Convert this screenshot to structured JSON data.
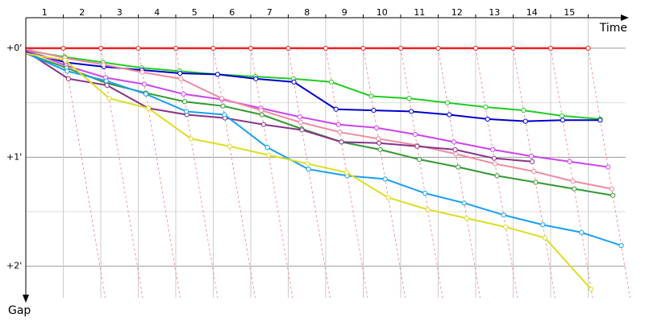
{
  "chart_data": {
    "type": "line",
    "x_label": "Time",
    "y_label": "Gap",
    "x": [
      0,
      1,
      2,
      3,
      4,
      5,
      6,
      7,
      8,
      9,
      10,
      11,
      12,
      13,
      14,
      15
    ],
    "xlim": [
      0,
      16
    ],
    "xticks": [
      1,
      2,
      3,
      4,
      5,
      6,
      7,
      8,
      9,
      10,
      11,
      12,
      13,
      14,
      15
    ],
    "ylim": [
      -0.28,
      2.29
    ],
    "yticks": [
      {
        "value": 0,
        "label": "+0'"
      },
      {
        "value": 1,
        "label": "+1'"
      },
      {
        "value": 2,
        "label": "+2'"
      }
    ],
    "minor_yticks": [
      0.5,
      1.5
    ],
    "grid": true,
    "series": [
      {
        "name": "Red",
        "color": "#ee2222",
        "values": [
          0,
          0,
          0,
          0,
          0,
          0,
          0,
          0,
          0,
          0,
          0,
          0,
          0,
          0,
          0,
          0
        ]
      },
      {
        "name": "Green",
        "color": "#22cc22",
        "values": [
          0.02,
          0.08,
          0.13,
          0.18,
          0.21,
          0.24,
          0.26,
          0.28,
          0.31,
          0.44,
          0.46,
          0.5,
          0.54,
          0.57,
          0.62,
          0.65
        ]
      },
      {
        "name": "Dark blue",
        "color": "#0000cc",
        "values": [
          0.03,
          0.13,
          0.17,
          0.2,
          0.23,
          0.24,
          0.28,
          0.31,
          0.56,
          0.57,
          0.58,
          0.61,
          0.65,
          0.67,
          0.66,
          0.66
        ]
      },
      {
        "name": "Magenta",
        "color": "#cc44ee",
        "values": [
          0.02,
          0.16,
          0.27,
          0.33,
          0.42,
          0.47,
          0.55,
          0.63,
          0.7,
          0.73,
          0.79,
          0.86,
          0.93,
          0.99,
          1.04,
          1.09
        ]
      },
      {
        "name": "Pink",
        "color": "#f08aa0",
        "values": [
          0.01,
          0.09,
          0.15,
          0.22,
          0.28,
          0.46,
          0.57,
          0.68,
          0.77,
          0.83,
          0.89,
          0.97,
          1.06,
          1.13,
          1.22,
          1.29
        ]
      },
      {
        "name": "Dark green",
        "color": "#339933",
        "values": [
          0.05,
          0.18,
          0.32,
          0.41,
          0.49,
          0.53,
          0.61,
          0.74,
          0.86,
          0.93,
          1.02,
          1.09,
          1.17,
          1.23,
          1.29,
          1.35
        ]
      },
      {
        "name": "Purple",
        "color": "#883388",
        "values": [
          0.03,
          0.28,
          0.34,
          0.55,
          0.61,
          0.64,
          0.7,
          0.75,
          0.86,
          0.87,
          0.9,
          0.93,
          1.01,
          1.04,
          null,
          null
        ]
      },
      {
        "name": "Light blue",
        "color": "#1a9fee",
        "values": [
          0.05,
          0.21,
          0.3,
          0.42,
          0.58,
          0.61,
          0.91,
          1.11,
          1.17,
          1.2,
          1.33,
          1.42,
          1.53,
          1.62,
          1.69,
          1.81
        ]
      },
      {
        "name": "Yellow",
        "color": "#dddd22",
        "values": [
          0.05,
          0.11,
          0.46,
          0.55,
          0.83,
          0.9,
          0.98,
          1.06,
          1.14,
          1.37,
          1.48,
          1.56,
          1.64,
          1.74,
          2.21,
          null
        ]
      }
    ]
  }
}
